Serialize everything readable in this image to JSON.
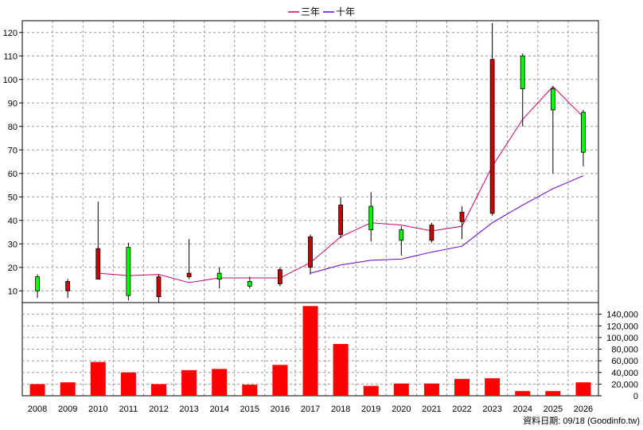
{
  "chart_data": {
    "type": "candlestick",
    "legend": [
      {
        "name": "三年",
        "color": "#cc0066"
      },
      {
        "name": "十年",
        "color": "#6600cc"
      }
    ],
    "years": [
      "2008",
      "2009",
      "2010",
      "2011",
      "2012",
      "2013",
      "2014",
      "2015",
      "2016",
      "2017",
      "2018",
      "2019",
      "2020",
      "2021",
      "2022",
      "2023",
      "2024",
      "2025",
      "2026"
    ],
    "price_axis": {
      "ylim": [
        5,
        125
      ],
      "ticks": [
        10,
        20,
        30,
        40,
        50,
        60,
        70,
        80,
        90,
        100,
        110,
        120
      ]
    },
    "candles": [
      {
        "open": 10,
        "high": 17,
        "low": 7,
        "close": 16
      },
      {
        "open": 14,
        "high": 15,
        "low": 7,
        "close": 10
      },
      {
        "open": 28,
        "high": 48,
        "low": 15,
        "close": 15
      },
      {
        "open": 8,
        "high": 30.5,
        "low": 6,
        "close": 28.5
      },
      {
        "open": 16,
        "high": 17,
        "low": 5,
        "close": 7.5
      },
      {
        "open": 17.5,
        "high": 32,
        "low": 15,
        "close": 16
      },
      {
        "open": 15,
        "high": 20,
        "low": 11,
        "close": 17.5
      },
      {
        "open": 12,
        "high": 16,
        "low": 11,
        "close": 14
      },
      {
        "open": 19,
        "high": 20,
        "low": 12,
        "close": 13
      },
      {
        "open": 33,
        "high": 34,
        "low": 17,
        "close": 20
      },
      {
        "open": 46.5,
        "high": 50,
        "low": 32.5,
        "close": 34
      },
      {
        "open": 36,
        "high": 52,
        "low": 31,
        "close": 46
      },
      {
        "open": 31.5,
        "high": 37.5,
        "low": 25,
        "close": 36
      },
      {
        "open": 38,
        "high": 39,
        "low": 30.5,
        "close": 31.5
      },
      {
        "open": 43.5,
        "high": 46,
        "low": 32,
        "close": 39.5
      },
      {
        "open": 108.5,
        "high": 124,
        "low": 42,
        "close": 43
      },
      {
        "open": 96,
        "high": 111,
        "low": 80,
        "close": 110
      },
      {
        "open": 87,
        "high": 97,
        "low": 60,
        "close": 96
      },
      {
        "open": 69,
        "high": 87,
        "low": 63,
        "close": 86
      }
    ],
    "series": [
      {
        "name": "三年",
        "values": [
          null,
          null,
          17.5,
          16.5,
          17,
          13.5,
          15.5,
          15.5,
          15.5,
          22,
          33,
          39,
          38,
          35.5,
          37.5,
          63,
          83,
          97,
          84
        ]
      },
      {
        "name": "十年",
        "values": [
          null,
          null,
          null,
          null,
          null,
          null,
          null,
          null,
          null,
          17.5,
          21,
          23,
          23.5,
          26.5,
          29,
          39,
          46.5,
          53.5,
          59
        ]
      }
    ],
    "volume_axis": {
      "ylim": [
        0,
        160000
      ],
      "ticks": [
        "0",
        "20,000",
        "40,000",
        "60,000",
        "80,000",
        "100,000",
        "120,000",
        "140,000"
      ]
    },
    "volume": [
      20000,
      23000,
      58000,
      40000,
      20000,
      44000,
      46000,
      19000,
      53000,
      154000,
      89000,
      17000,
      21000,
      21000,
      29000,
      30000,
      8000,
      8000,
      23000
    ],
    "footer": "資料日期: 09/18 (Goodinfo.tw)"
  },
  "colors": {
    "up": "#00ff00",
    "down": "#cc0000",
    "volume": "#ff0000",
    "grid": "#999999",
    "axis": "#000000"
  }
}
